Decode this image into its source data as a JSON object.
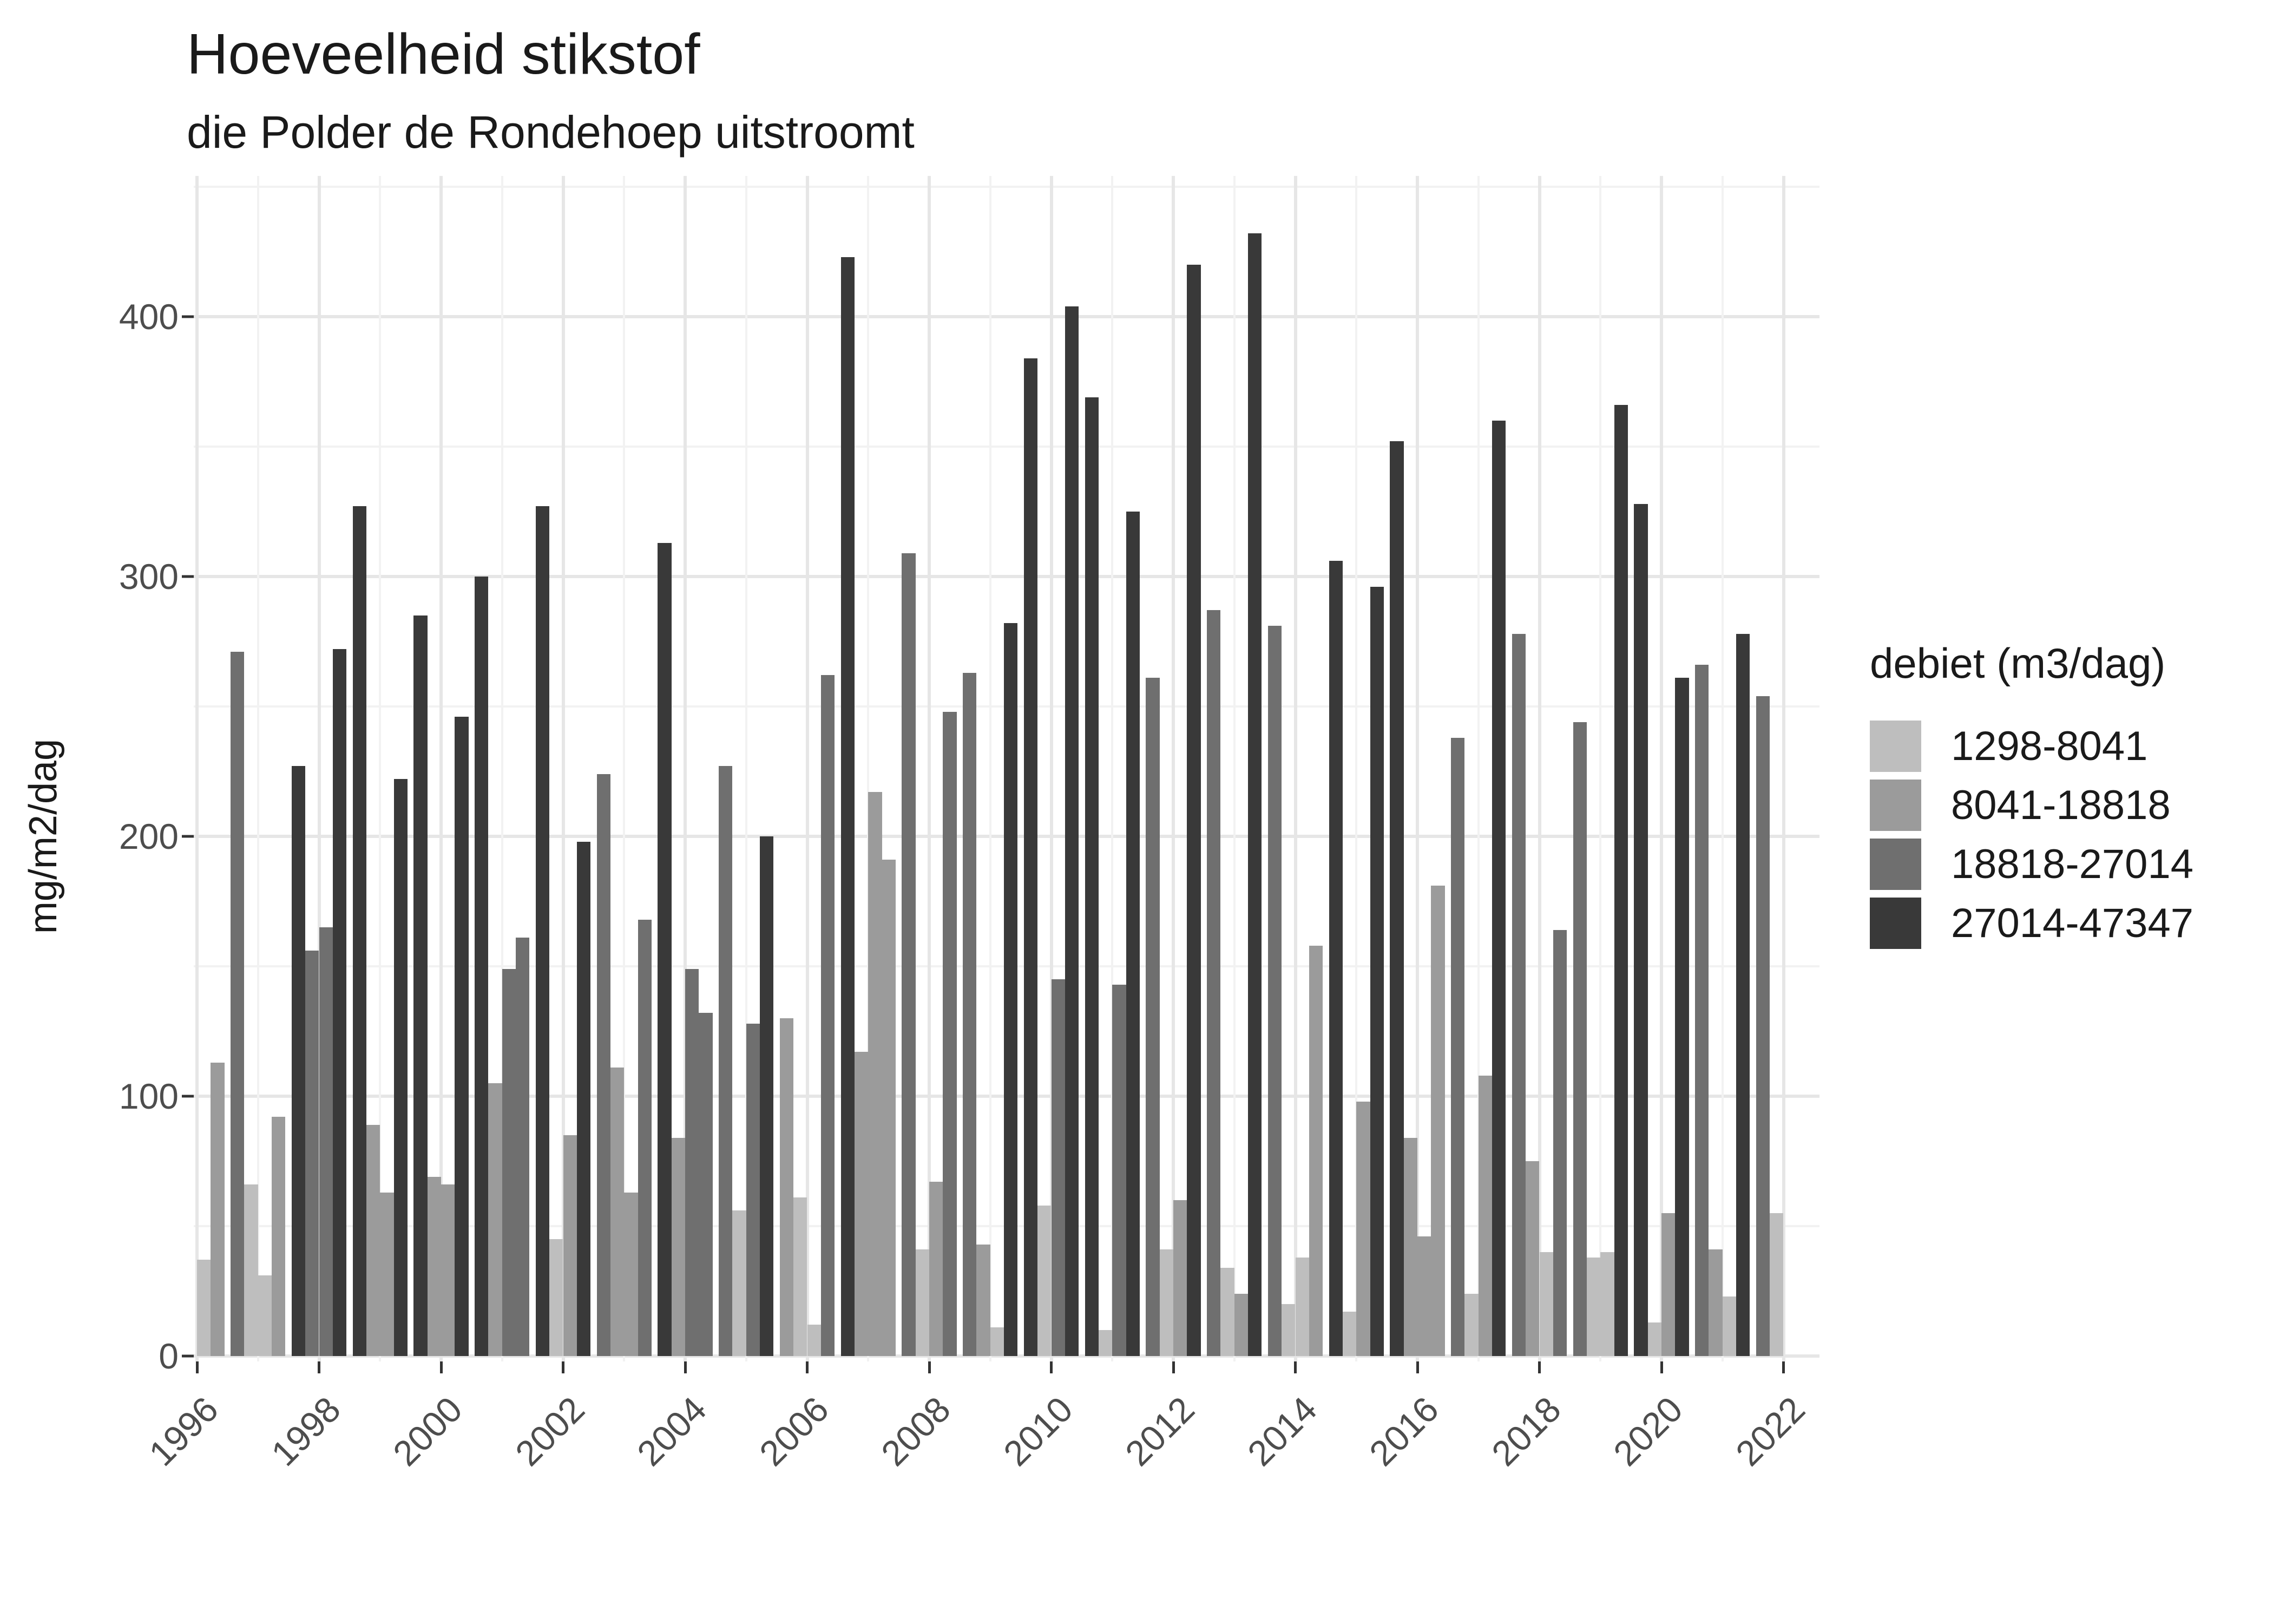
{
  "title": "Hoeveelheid stikstof",
  "subtitle": "die Polder de Rondehoep uitstroomt",
  "y_axis": {
    "label": "mg/m2/dag",
    "ticks": [
      0,
      100,
      200,
      300,
      400
    ]
  },
  "x_axis": {
    "ticks": [
      1996,
      1998,
      2000,
      2002,
      2004,
      2006,
      2008,
      2010,
      2012,
      2014,
      2016,
      2018,
      2020,
      2022
    ]
  },
  "legend": {
    "title": "debiet (m3/dag)",
    "items": [
      {
        "label": "1298-8041",
        "color": "#bebebe"
      },
      {
        "label": "8041-18818",
        "color": "#9b9b9b"
      },
      {
        "label": "18818-27014",
        "color": "#6f6f6f"
      },
      {
        "label": "27014-47347",
        "color": "#393939"
      }
    ]
  },
  "chart_data": {
    "type": "bar",
    "title": "Hoeveelheid stikstof",
    "subtitle": "die Polder de Rondehoep uitstroomt",
    "xlabel": "",
    "ylabel": "mg/m2/dag",
    "ylim": [
      0,
      450
    ],
    "grid": true,
    "legend_position": "right",
    "legend_title": "debiet (m3/dag)",
    "categories": [
      "1298-8041",
      "8041-18818",
      "18818-27014",
      "27014-47347"
    ],
    "category_colors": [
      "#bebebe",
      "#9b9b9b",
      "#6f6f6f",
      "#393939"
    ],
    "bar_unit": "mg/m2/dag per quarter (year, quarter, value, debiet-category-index)",
    "bars": [
      [
        1996,
        3,
        37,
        0
      ],
      [
        1996,
        4,
        113,
        1
      ],
      [
        1997,
        1,
        271,
        2
      ],
      [
        1997,
        2,
        66,
        0
      ],
      [
        1997,
        3,
        31,
        0
      ],
      [
        1997,
        4,
        92,
        1
      ],
      [
        1998,
        1,
        227,
        3
      ],
      [
        1998,
        2,
        156,
        2
      ],
      [
        1998,
        3,
        165,
        2
      ],
      [
        1998,
        4,
        272,
        3
      ],
      [
        1999,
        1,
        327,
        3
      ],
      [
        1999,
        2,
        89,
        1
      ],
      [
        1999,
        3,
        63,
        1
      ],
      [
        1999,
        4,
        222,
        3
      ],
      [
        2000,
        1,
        285,
        3
      ],
      [
        2000,
        2,
        69,
        1
      ],
      [
        2000,
        3,
        66,
        1
      ],
      [
        2000,
        4,
        246,
        3
      ],
      [
        2001,
        1,
        300,
        3
      ],
      [
        2001,
        2,
        105,
        1
      ],
      [
        2001,
        3,
        149,
        2
      ],
      [
        2001,
        4,
        161,
        2
      ],
      [
        2002,
        1,
        327,
        3
      ],
      [
        2002,
        2,
        45,
        0
      ],
      [
        2002,
        3,
        85,
        1
      ],
      [
        2002,
        4,
        198,
        3
      ],
      [
        2003,
        1,
        224,
        2
      ],
      [
        2003,
        2,
        111,
        1
      ],
      [
        2003,
        3,
        63,
        1
      ],
      [
        2003,
        4,
        168,
        2
      ],
      [
        2004,
        1,
        313,
        3
      ],
      [
        2004,
        2,
        84,
        1
      ],
      [
        2004,
        3,
        149,
        2
      ],
      [
        2004,
        4,
        132,
        2
      ],
      [
        2005,
        1,
        227,
        2
      ],
      [
        2005,
        2,
        56,
        0
      ],
      [
        2005,
        3,
        128,
        2
      ],
      [
        2005,
        4,
        200,
        3
      ],
      [
        2006,
        1,
        130,
        1
      ],
      [
        2006,
        2,
        61,
        0
      ],
      [
        2006,
        3,
        12,
        0
      ],
      [
        2006,
        4,
        262,
        2
      ],
      [
        2007,
        1,
        423,
        3
      ],
      [
        2007,
        2,
        117,
        1
      ],
      [
        2007,
        3,
        217,
        1
      ],
      [
        2007,
        4,
        191,
        1
      ],
      [
        2008,
        1,
        309,
        2
      ],
      [
        2008,
        2,
        41,
        0
      ],
      [
        2008,
        3,
        67,
        1
      ],
      [
        2008,
        4,
        248,
        2
      ],
      [
        2009,
        1,
        263,
        2
      ],
      [
        2009,
        2,
        43,
        1
      ],
      [
        2009,
        3,
        11,
        0
      ],
      [
        2009,
        4,
        282,
        3
      ],
      [
        2010,
        1,
        384,
        3
      ],
      [
        2010,
        2,
        58,
        0
      ],
      [
        2010,
        3,
        145,
        2
      ],
      [
        2010,
        4,
        404,
        3
      ],
      [
        2011,
        1,
        369,
        3
      ],
      [
        2011,
        2,
        10,
        0
      ],
      [
        2011,
        3,
        143,
        2
      ],
      [
        2011,
        4,
        325,
        3
      ],
      [
        2012,
        1,
        261,
        2
      ],
      [
        2012,
        2,
        41,
        0
      ],
      [
        2012,
        3,
        60,
        1
      ],
      [
        2012,
        4,
        420,
        3
      ],
      [
        2013,
        1,
        287,
        2
      ],
      [
        2013,
        2,
        34,
        0
      ],
      [
        2013,
        3,
        24,
        1
      ],
      [
        2013,
        4,
        432,
        3
      ],
      [
        2014,
        1,
        281,
        2
      ],
      [
        2014,
        2,
        20,
        0
      ],
      [
        2014,
        3,
        38,
        0
      ],
      [
        2014,
        4,
        158,
        1
      ],
      [
        2015,
        1,
        306,
        3
      ],
      [
        2015,
        2,
        17,
        0
      ],
      [
        2015,
        3,
        98,
        1
      ],
      [
        2015,
        4,
        296,
        3
      ],
      [
        2016,
        1,
        352,
        3
      ],
      [
        2016,
        2,
        84,
        1
      ],
      [
        2016,
        3,
        46,
        1
      ],
      [
        2016,
        4,
        181,
        1
      ],
      [
        2017,
        1,
        238,
        2
      ],
      [
        2017,
        2,
        24,
        0
      ],
      [
        2017,
        3,
        108,
        1
      ],
      [
        2017,
        4,
        360,
        3
      ],
      [
        2018,
        1,
        278,
        2
      ],
      [
        2018,
        2,
        75,
        1
      ],
      [
        2018,
        3,
        40,
        0
      ],
      [
        2018,
        4,
        164,
        2
      ],
      [
        2019,
        1,
        244,
        2
      ],
      [
        2019,
        2,
        38,
        0
      ],
      [
        2019,
        3,
        40,
        0
      ],
      [
        2019,
        4,
        366,
        3
      ],
      [
        2020,
        1,
        328,
        3
      ],
      [
        2020,
        2,
        13,
        0
      ],
      [
        2020,
        3,
        55,
        1
      ],
      [
        2020,
        4,
        261,
        3
      ],
      [
        2021,
        1,
        266,
        2
      ],
      [
        2021,
        2,
        41,
        1
      ],
      [
        2021,
        3,
        23,
        0
      ],
      [
        2021,
        4,
        278,
        3
      ],
      [
        2022,
        1,
        254,
        2
      ],
      [
        2022,
        2,
        55,
        0
      ]
    ]
  }
}
